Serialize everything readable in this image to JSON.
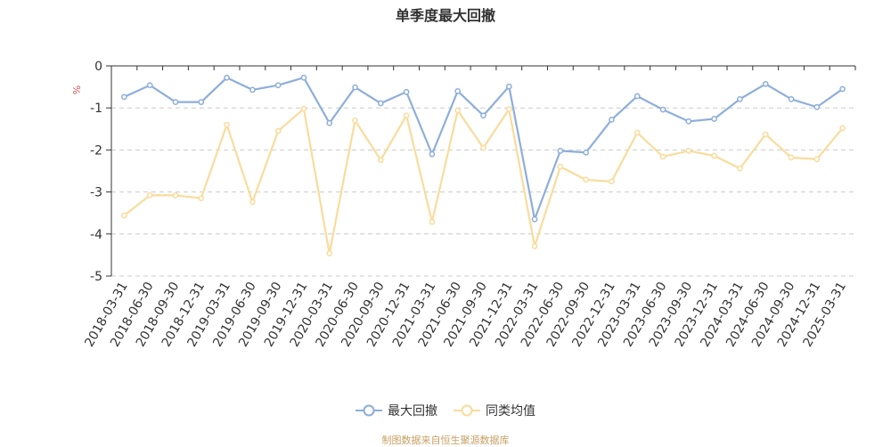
{
  "chart_data": {
    "type": "line",
    "title": "单季度最大回撤",
    "ylabel": "%",
    "ylim": [
      -5,
      0
    ],
    "yticks": [
      0,
      -1,
      -2,
      -3,
      -4,
      -5
    ],
    "grid": true,
    "legend_position": "bottom",
    "categories": [
      "2018-03-31",
      "2018-06-30",
      "2018-09-30",
      "2018-12-31",
      "2019-03-31",
      "2019-06-30",
      "2019-09-30",
      "2019-12-31",
      "2020-03-31",
      "2020-06-30",
      "2020-09-30",
      "2020-12-31",
      "2021-03-31",
      "2021-06-30",
      "2021-09-30",
      "2021-12-31",
      "2022-03-31",
      "2022-06-30",
      "2022-09-30",
      "2022-12-31",
      "2023-03-31",
      "2023-06-30",
      "2023-09-30",
      "2023-12-31",
      "2024-03-31",
      "2024-06-30",
      "2024-09-30",
      "2024-12-31",
      "2025-03-31"
    ],
    "series": [
      {
        "name": "最大回撤",
        "color": "#8eaedb",
        "values": [
          -0.74,
          -0.46,
          -0.86,
          -0.86,
          -0.28,
          -0.57,
          -0.46,
          -0.28,
          -1.36,
          -0.51,
          -0.89,
          -0.62,
          -2.1,
          -0.6,
          -1.18,
          -0.49,
          -3.65,
          -2.02,
          -2.06,
          -1.28,
          -0.72,
          -1.04,
          -1.32,
          -1.26,
          -0.79,
          -0.43,
          -0.79,
          -0.98,
          -0.55
        ]
      },
      {
        "name": "同类均值",
        "color": "#f9dc9c",
        "values": [
          -3.56,
          -3.08,
          -3.08,
          -3.15,
          -1.4,
          -3.24,
          -1.55,
          -1.02,
          -4.46,
          -1.3,
          -2.24,
          -1.18,
          -3.71,
          -1.06,
          -1.95,
          -1.03,
          -4.29,
          -2.4,
          -2.71,
          -2.75,
          -1.59,
          -2.16,
          -2.02,
          -2.14,
          -2.44,
          -1.63,
          -2.18,
          -2.22,
          -1.48
        ]
      }
    ]
  },
  "source_text": "制图数据来自恒生聚源数据库"
}
